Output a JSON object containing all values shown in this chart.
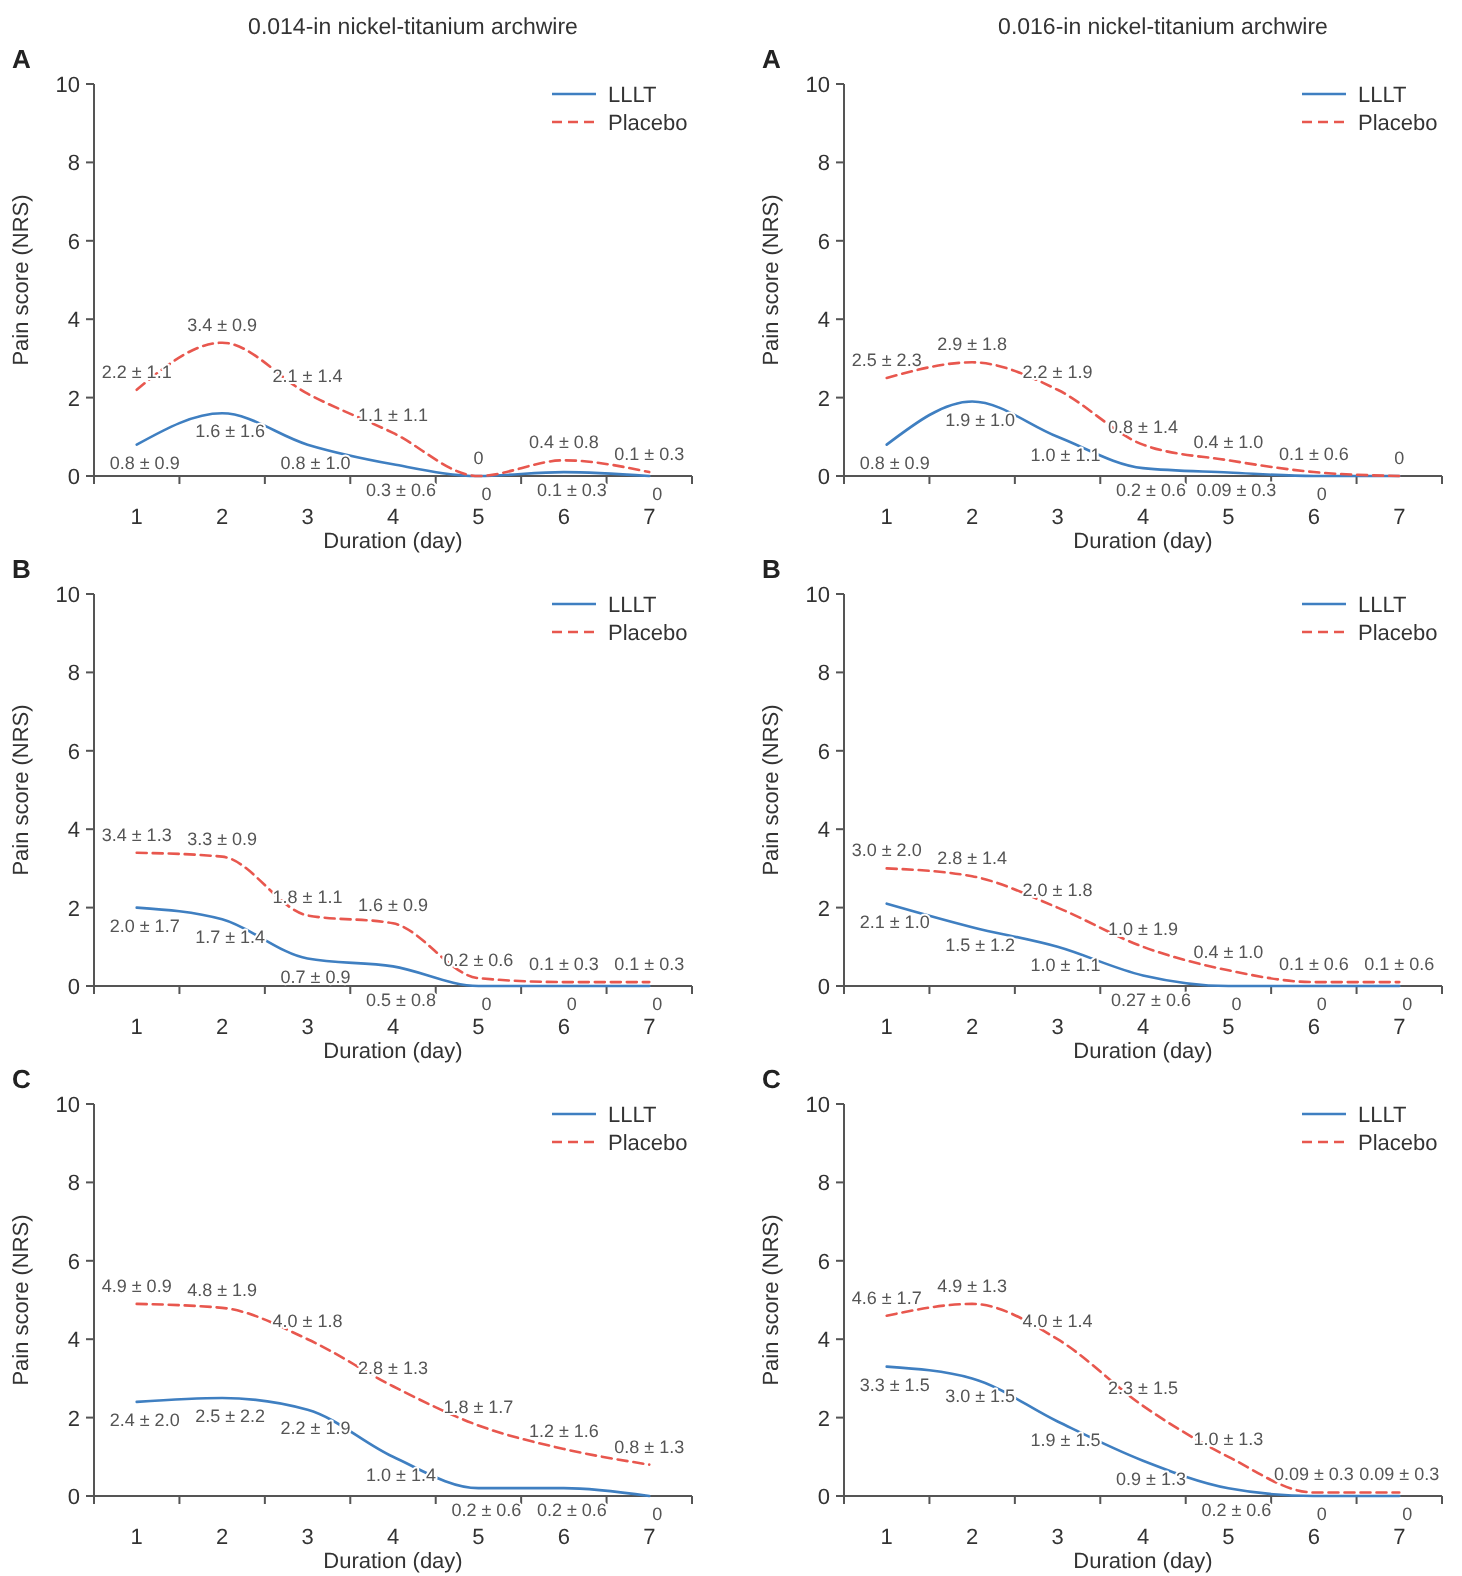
{
  "chart_data": [
    {
      "type": "line",
      "title": "0.014-in nickel-titanium archwire",
      "subtitle": "A",
      "xlabel": "Duration (day)",
      "ylabel": "Pain score (NRS)",
      "categories": [
        "1",
        "2",
        "3",
        "4",
        "5",
        "6",
        "7"
      ],
      "ylim": [
        0,
        10
      ],
      "yticks": [
        0,
        2,
        4,
        6,
        8,
        10
      ],
      "legend": "top right",
      "series": [
        {
          "name": "LLLT",
          "color": "#3f7fc1",
          "line_style": "solid",
          "values": [
            0.8,
            1.6,
            0.8,
            0.3,
            0,
            0.1,
            0
          ],
          "value_labels": [
            "0.8 ± 0.9",
            "1.6 ± 1.6",
            "0.8 ± 1.0",
            "0.3 ± 0.6",
            "0",
            "0.1 ± 0.3",
            "0"
          ]
        },
        {
          "name": "Placebo",
          "color": "#e8574e",
          "line_style": "dashed",
          "values": [
            2.2,
            3.4,
            2.1,
            1.1,
            0,
            0.4,
            0.1
          ],
          "value_labels": [
            "2.2 ± 1.1",
            "3.4 ± 0.9",
            "2.1 ± 1.4",
            "1.1 ± 1.1",
            "0",
            "0.4 ± 0.8",
            "0.1 ± 0.3"
          ]
        }
      ]
    },
    {
      "type": "line",
      "title": "0.016-in nickel-titanium archwire",
      "subtitle": "A",
      "xlabel": "Duration (day)",
      "ylabel": "Pain score (NRS)",
      "categories": [
        "1",
        "2",
        "3",
        "4",
        "5",
        "6",
        "7"
      ],
      "ylim": [
        0,
        10
      ],
      "yticks": [
        0,
        2,
        4,
        6,
        8,
        10
      ],
      "legend": "top right",
      "series": [
        {
          "name": "LLLT",
          "color": "#3f7fc1",
          "line_style": "solid",
          "values": [
            0.8,
            1.9,
            1.0,
            0.2,
            0.09,
            0,
            0
          ],
          "value_labels": [
            "0.8 ± 0.9",
            "1.9 ± 1.0",
            "1.0 ± 1.1",
            "0.2 ± 0.6",
            "0.09 ± 0.3",
            "0",
            null
          ]
        },
        {
          "name": "Placebo",
          "color": "#e8574e",
          "line_style": "dashed",
          "values": [
            2.5,
            2.9,
            2.2,
            0.8,
            0.4,
            0.1,
            0
          ],
          "value_labels": [
            "2.5 ± 2.3",
            "2.9 ± 1.8",
            "2.2 ± 1.9",
            "0.8 ± 1.4",
            "0.4 ± 1.0",
            "0.1 ± 0.6",
            "0"
          ]
        }
      ]
    },
    {
      "type": "line",
      "subtitle": "B",
      "xlabel": "Duration (day)",
      "ylabel": "Pain score (NRS)",
      "categories": [
        "1",
        "2",
        "3",
        "4",
        "5",
        "6",
        "7"
      ],
      "ylim": [
        0,
        10
      ],
      "yticks": [
        0,
        2,
        4,
        6,
        8,
        10
      ],
      "legend": "top right",
      "series": [
        {
          "name": "LLLT",
          "color": "#3f7fc1",
          "line_style": "solid",
          "values": [
            2.0,
            1.7,
            0.7,
            0.5,
            0,
            0,
            0
          ],
          "value_labels": [
            "2.0 ± 1.7",
            "1.7 ± 1.4",
            "0.7 ± 0.9",
            "0.5 ± 0.8",
            "0",
            "0",
            "0"
          ]
        },
        {
          "name": "Placebo",
          "color": "#e8574e",
          "line_style": "dashed",
          "values": [
            3.4,
            3.3,
            1.8,
            1.6,
            0.2,
            0.1,
            0.1
          ],
          "value_labels": [
            "3.4 ± 1.3",
            "3.3 ± 0.9",
            "1.8 ± 1.1",
            "1.6 ± 0.9",
            "0.2 ± 0.6",
            "0.1 ± 0.3",
            "0.1 ± 0.3"
          ]
        }
      ]
    },
    {
      "type": "line",
      "subtitle": "B",
      "xlabel": "Duration (day)",
      "ylabel": "Pain score (NRS)",
      "categories": [
        "1",
        "2",
        "3",
        "4",
        "5",
        "6",
        "7"
      ],
      "ylim": [
        0,
        10
      ],
      "yticks": [
        0,
        2,
        4,
        6,
        8,
        10
      ],
      "legend": "top right",
      "series": [
        {
          "name": "LLLT",
          "color": "#3f7fc1",
          "line_style": "solid",
          "values": [
            2.1,
            1.5,
            1.0,
            0.27,
            0,
            0,
            0
          ],
          "value_labels": [
            "2.1 ± 1.0",
            "1.5 ± 1.2",
            "1.0 ± 1.1",
            "0.27 ± 0.6",
            "0",
            "0",
            "0"
          ]
        },
        {
          "name": "Placebo",
          "color": "#e8574e",
          "line_style": "dashed",
          "values": [
            3.0,
            2.8,
            2.0,
            1.0,
            0.4,
            0.1,
            0.1
          ],
          "value_labels": [
            "3.0 ± 2.0",
            "2.8 ± 1.4",
            "2.0 ± 1.8",
            "1.0 ± 1.9",
            "0.4 ± 1.0",
            "0.1 ± 0.6",
            "0.1 ± 0.6"
          ]
        }
      ]
    },
    {
      "type": "line",
      "subtitle": "C",
      "xlabel": "Duration (day)",
      "ylabel": "Pain score (NRS)",
      "categories": [
        "1",
        "2",
        "3",
        "4",
        "5",
        "6",
        "7"
      ],
      "ylim": [
        0,
        10
      ],
      "yticks": [
        0,
        2,
        4,
        6,
        8,
        10
      ],
      "legend": "top right",
      "series": [
        {
          "name": "LLLT",
          "color": "#3f7fc1",
          "line_style": "solid",
          "values": [
            2.4,
            2.5,
            2.2,
            1.0,
            0.2,
            0.2,
            0
          ],
          "value_labels": [
            "2.4 ± 2.0",
            "2.5 ± 2.2",
            "2.2 ± 1.9",
            "1.0 ± 1.4",
            "0.2 ± 0.6",
            "0.2 ± 0.6",
            "0"
          ]
        },
        {
          "name": "Placebo",
          "color": "#e8574e",
          "line_style": "dashed",
          "values": [
            4.9,
            4.8,
            4.0,
            2.8,
            1.8,
            1.2,
            0.8
          ],
          "value_labels": [
            "4.9 ± 0.9",
            "4.8 ± 1.9",
            "4.0 ± 1.8",
            "2.8 ± 1.3",
            "1.8 ± 1.7",
            "1.2 ± 1.6",
            "0.8 ± 1.3"
          ]
        }
      ]
    },
    {
      "type": "line",
      "subtitle": "C",
      "xlabel": "Duration (day)",
      "ylabel": "Pain score (NRS)",
      "categories": [
        "1",
        "2",
        "3",
        "4",
        "5",
        "6",
        "7"
      ],
      "ylim": [
        0,
        10
      ],
      "yticks": [
        0,
        2,
        4,
        6,
        8,
        10
      ],
      "legend": "top right",
      "series": [
        {
          "name": "LLLT",
          "color": "#3f7fc1",
          "line_style": "solid",
          "values": [
            3.3,
            3.0,
            1.9,
            0.9,
            0.2,
            0,
            0
          ],
          "value_labels": [
            "3.3 ± 1.5",
            "3.0 ± 1.5",
            "1.9 ± 1.5",
            "0.9 ± 1.3",
            "0.2 ± 0.6",
            "0",
            "0"
          ]
        },
        {
          "name": "Placebo",
          "color": "#e8574e",
          "line_style": "dashed",
          "values": [
            4.6,
            4.9,
            4.0,
            2.3,
            1.0,
            0.09,
            0.09
          ],
          "value_labels": [
            "4.6 ± 1.7",
            "4.9 ± 1.3",
            "4.0 ± 1.4",
            "2.3 ± 1.5",
            "1.0 ± 1.3",
            "0.09 ± 0.3",
            "0.09 ± 0.3"
          ]
        }
      ]
    }
  ]
}
